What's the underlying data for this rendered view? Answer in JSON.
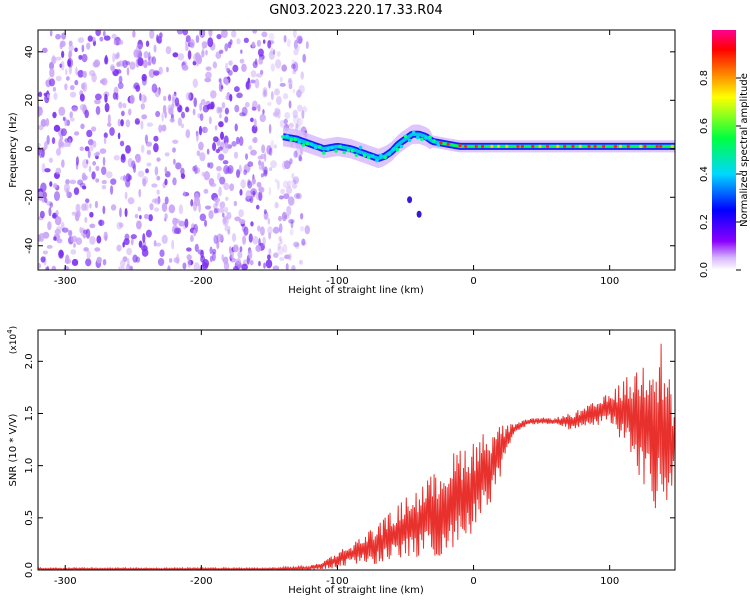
{
  "title": "GN03.2023.220.17.33.R04",
  "colors": {
    "noise": "#7a2ef0",
    "noise_light": "#c9a3f7",
    "snr_line": "#e8302c",
    "colorbar_stops": [
      "#ffffff",
      "#8a00ff",
      "#0000ff",
      "#00d8ff",
      "#00ff40",
      "#ffff00",
      "#ff8000",
      "#ff0000",
      "#ff0090"
    ]
  },
  "chart_data": [
    {
      "type": "heatmap",
      "xlabel": "Height of straight line (km)",
      "ylabel": "Frequency (Hz)",
      "xlim": [
        -320,
        148
      ],
      "ylim": [
        -50,
        49
      ],
      "xticks": [
        -300,
        -200,
        -100,
        0,
        100
      ],
      "xtick_labels": [
        "-300",
        "-200",
        "-100",
        "0",
        "100"
      ],
      "yticks": [
        -40,
        -20,
        0,
        20,
        40
      ],
      "ytick_labels": [
        "-40",
        "-20",
        "0",
        "20",
        "40"
      ],
      "noise_region_x": [
        -320,
        -122
      ],
      "signal_trace": {
        "x": [
          -140,
          -130,
          -120,
          -110,
          -100,
          -90,
          -80,
          -70,
          -65,
          -60,
          -55,
          -50,
          -45,
          -40,
          -35,
          -30,
          -20,
          -10,
          0,
          20,
          50,
          100,
          148
        ],
        "y": [
          5,
          4,
          2,
          0,
          1,
          0,
          -2,
          -4,
          -3,
          -1,
          2,
          4,
          6,
          6,
          5,
          3,
          2,
          1,
          1,
          1,
          1,
          1,
          1
        ]
      },
      "detached_points": [
        {
          "x": -47,
          "y": -21
        },
        {
          "x": -40,
          "y": -27
        }
      ],
      "colorbar": {
        "label": "Normalized spectral amplitude",
        "range": [
          0,
          1
        ],
        "ticks": [
          0.0,
          0.2,
          0.4,
          0.6,
          0.8
        ],
        "tick_labels": [
          "0.0",
          "0.2",
          "0.4",
          "0.6",
          "0.8"
        ]
      }
    },
    {
      "type": "line",
      "xlabel": "Height of straight line (km)",
      "ylabel": "SNR (10 * V/V)",
      "exponent_label": "(x10",
      "exponent_power": "4",
      "exponent_close": ")",
      "xlim": [
        -320,
        148
      ],
      "ylim": [
        0,
        2.3
      ],
      "xticks": [
        -300,
        -200,
        -100,
        0,
        100
      ],
      "xtick_labels": [
        "-300",
        "-200",
        "-100",
        "0",
        "100"
      ],
      "yticks": [
        0.0,
        0.5,
        1.0,
        1.5,
        2.0
      ],
      "ytick_labels": [
        "0.0",
        "0.5",
        "1.0",
        "1.5",
        "2.0"
      ],
      "envelope": {
        "x": [
          -320,
          -150,
          -120,
          -110,
          -100,
          -90,
          -80,
          -70,
          -60,
          -50,
          -40,
          -30,
          -20,
          -10,
          0,
          10,
          20,
          30,
          40,
          50,
          60,
          70,
          80,
          90,
          100,
          110,
          120,
          130,
          140,
          148
        ],
        "center": [
          0.01,
          0.01,
          0.02,
          0.05,
          0.1,
          0.15,
          0.2,
          0.25,
          0.32,
          0.4,
          0.45,
          0.52,
          0.6,
          0.7,
          0.8,
          0.95,
          1.15,
          1.35,
          1.42,
          1.43,
          1.43,
          1.42,
          1.45,
          1.5,
          1.55,
          1.52,
          1.45,
          1.4,
          1.3,
          1.2
        ],
        "amplitude": [
          0.01,
          0.01,
          0.02,
          0.04,
          0.08,
          0.1,
          0.15,
          0.2,
          0.25,
          0.3,
          0.35,
          0.4,
          0.45,
          0.5,
          0.45,
          0.4,
          0.25,
          0.05,
          0.03,
          0.03,
          0.03,
          0.08,
          0.1,
          0.12,
          0.15,
          0.3,
          0.5,
          0.8,
          0.9,
          0.3
        ]
      }
    }
  ]
}
